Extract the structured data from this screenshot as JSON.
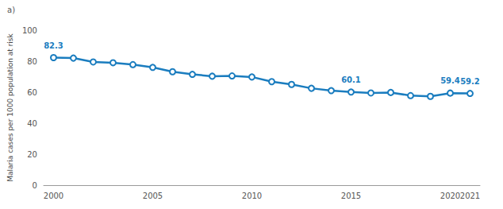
{
  "chart_data": {
    "type": "line",
    "title": "a)",
    "y_label": "Malaria cases per 1000 population at risk",
    "categories": [
      "2000",
      null,
      null,
      null,
      null,
      "2005",
      null,
      null,
      null,
      null,
      "2010",
      null,
      null,
      null,
      null,
      "2015",
      null,
      null,
      null,
      null,
      "2020",
      "2021"
    ],
    "values": [
      82.3,
      82.0,
      79.5,
      79.0,
      77.8,
      76.0,
      73.2,
      71.5,
      70.3,
      70.5,
      69.8,
      66.8,
      65.0,
      62.5,
      61.0,
      60.1,
      59.5,
      59.8,
      57.8,
      57.3,
      59.4,
      59.2
    ],
    "value_labels": [
      "82.3",
      null,
      null,
      null,
      null,
      null,
      null,
      null,
      null,
      null,
      null,
      null,
      null,
      null,
      null,
      "60.1",
      null,
      null,
      null,
      null,
      "59.4",
      "59.2"
    ],
    "color": "#1b7dbf",
    "marker": "emptyCircle",
    "ylim": [
      0,
      100
    ],
    "yticks": [
      0,
      20,
      40,
      60,
      80,
      100
    ],
    "grid": false
  }
}
